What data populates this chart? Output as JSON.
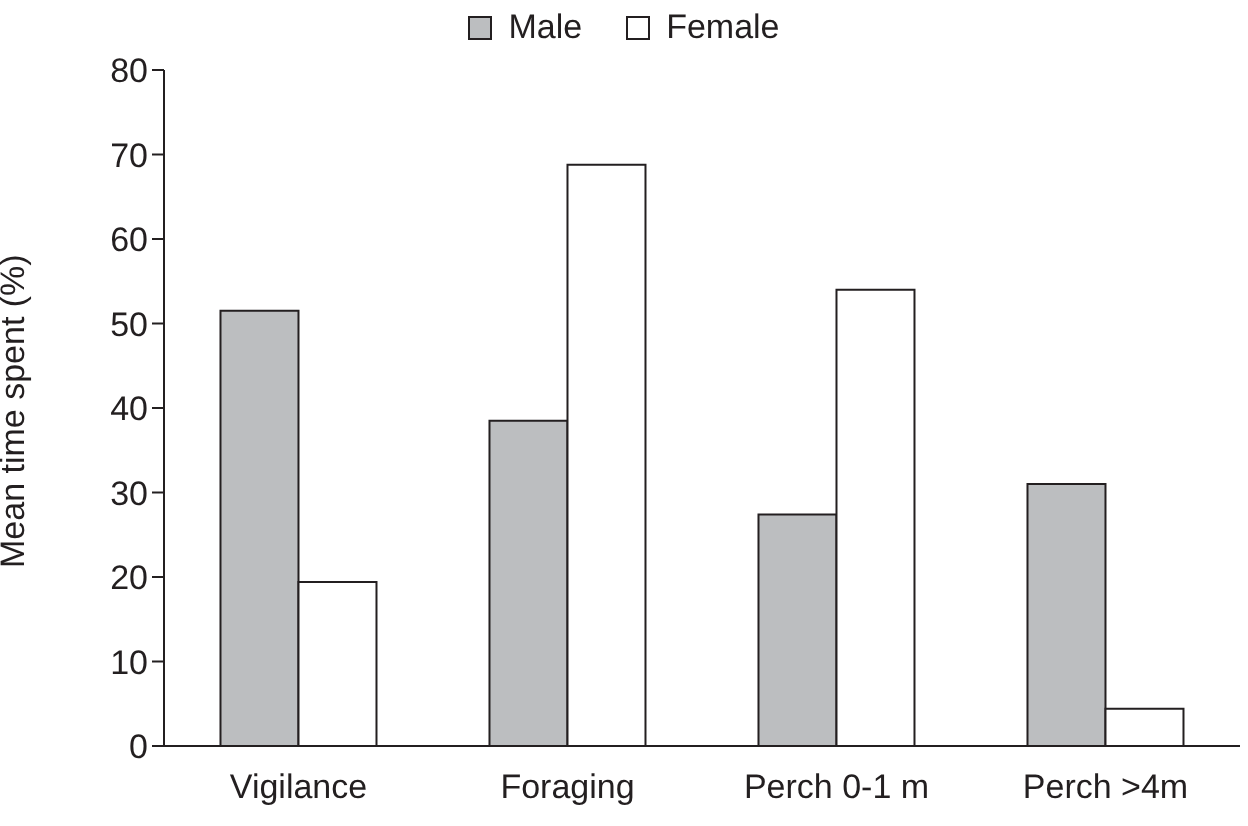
{
  "chart_data": {
    "type": "bar",
    "ylabel": "Mean time spent (%)",
    "categories": [
      "Vigilance",
      "Foraging",
      "Perch 0-1 m",
      "Perch >4m"
    ],
    "series": [
      {
        "name": "Male",
        "color": "#bcbec0",
        "values": [
          51.5,
          38.5,
          27.4,
          31.0
        ]
      },
      {
        "name": "Female",
        "color": "#ffffff",
        "values": [
          19.4,
          68.8,
          54.0,
          4.4
        ]
      }
    ],
    "ylim": [
      0,
      80
    ],
    "yticks": [
      0,
      10,
      20,
      30,
      40,
      50,
      60,
      70,
      80
    ],
    "grid": false,
    "legend": "top"
  }
}
